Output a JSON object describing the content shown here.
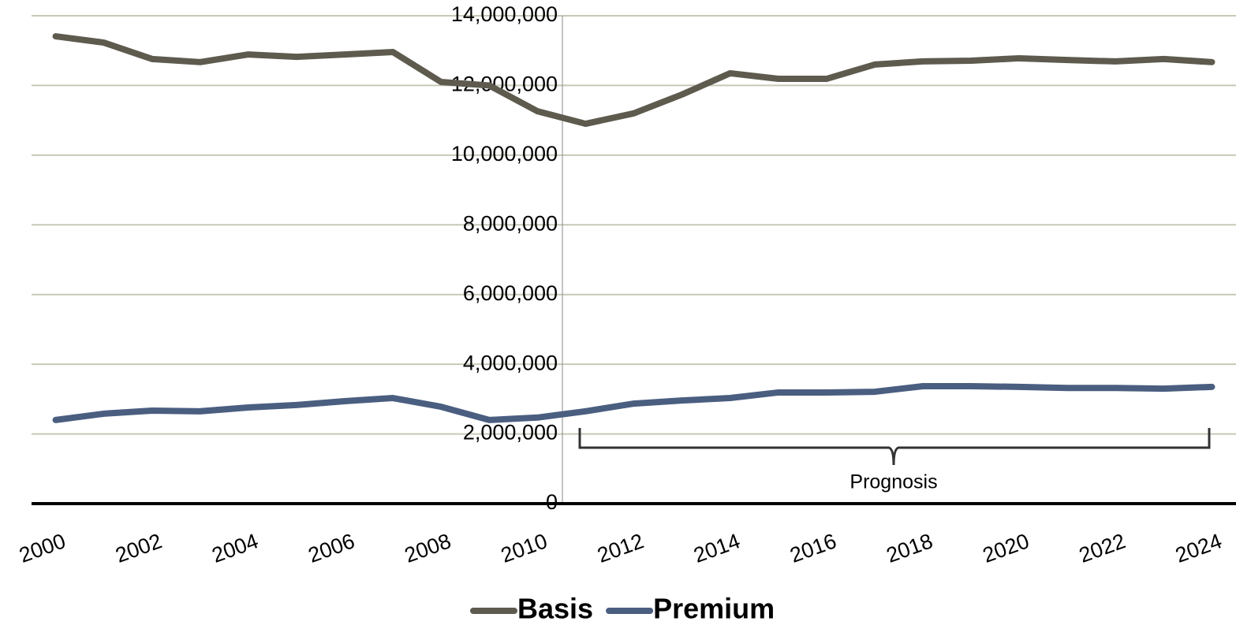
{
  "chart_data": {
    "type": "line",
    "x": [
      2000,
      2001,
      2002,
      2003,
      2004,
      2005,
      2006,
      2007,
      2008,
      2009,
      2010,
      2011,
      2012,
      2013,
      2014,
      2015,
      2016,
      2017,
      2018,
      2019,
      2020,
      2021,
      2022,
      2023,
      2024
    ],
    "series": [
      {
        "name": "Basis",
        "color": "#5e5a4e",
        "values": [
          13410000,
          13230000,
          12760000,
          12670000,
          12890000,
          12820000,
          12890000,
          12960000,
          12100000,
          12000000,
          11260000,
          10900000,
          11200000,
          11740000,
          12350000,
          12190000,
          12190000,
          12600000,
          12690000,
          12710000,
          12780000,
          12730000,
          12690000,
          12760000,
          12670000
        ]
      },
      {
        "name": "Premium",
        "color": "#4a5e80",
        "values": [
          2400000,
          2580000,
          2670000,
          2650000,
          2760000,
          2830000,
          2940000,
          3030000,
          2780000,
          2400000,
          2470000,
          2650000,
          2870000,
          2960000,
          3030000,
          3190000,
          3190000,
          3210000,
          3370000,
          3370000,
          3350000,
          3320000,
          3320000,
          3300000,
          3350000
        ]
      }
    ],
    "xlim": [
      1999.5,
      2024.5
    ],
    "xticks": [
      2000,
      2002,
      2004,
      2006,
      2008,
      2010,
      2012,
      2014,
      2016,
      2018,
      2020,
      2022,
      2024
    ],
    "ylim": [
      0,
      14000000
    ],
    "yticks": [
      0,
      {
        "value": 2000000,
        "label": "2,000,000"
      },
      {
        "value": 4000000,
        "label": "4,000,000"
      },
      {
        "value": 6000000,
        "label": "6,000,000"
      },
      {
        "value": 8000000,
        "label": "8,000,000"
      },
      {
        "value": 10000000,
        "label": "10,000,000"
      },
      {
        "value": 12000000,
        "label": "12,000,000"
      },
      {
        "value": 14000000,
        "label": "14,000,000"
      }
    ],
    "grid": true,
    "legend": "bottom",
    "annotation": "Prognosis"
  }
}
